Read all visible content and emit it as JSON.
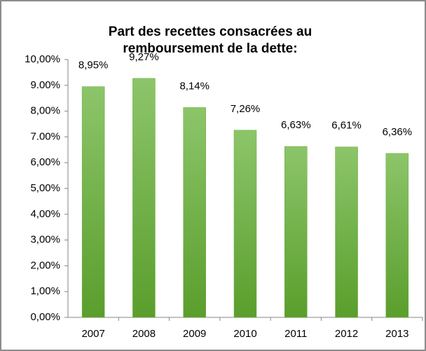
{
  "chart_data": {
    "type": "bar",
    "title": "Part des recettes consacrées au remboursement de la dette:",
    "categories": [
      "2007",
      "2008",
      "2009",
      "2010",
      "2011",
      "2012",
      "2013"
    ],
    "values": [
      8.95,
      9.27,
      8.14,
      7.26,
      6.63,
      6.61,
      6.36
    ],
    "value_labels": [
      "8,95%",
      "9,27%",
      "8,14%",
      "7,26%",
      "6,63%",
      "6,61%",
      "6,36%"
    ],
    "color": "#6aaa3a",
    "ylim": [
      0,
      10
    ],
    "yticks": [
      {
        "value": 0,
        "label": "0,00%"
      },
      {
        "value": 1,
        "label": "1,00%"
      },
      {
        "value": 2,
        "label": "2,00%"
      },
      {
        "value": 3,
        "label": "3,00%"
      },
      {
        "value": 4,
        "label": "4,00%"
      },
      {
        "value": 5,
        "label": "5,00%"
      },
      {
        "value": 6,
        "label": "6,00%"
      },
      {
        "value": 7,
        "label": "7.00%"
      },
      {
        "value": 8,
        "label": "8,00%"
      },
      {
        "value": 9,
        "label": "9.00%"
      },
      {
        "value": 10,
        "label": "10,00%"
      }
    ],
    "grid": false
  }
}
